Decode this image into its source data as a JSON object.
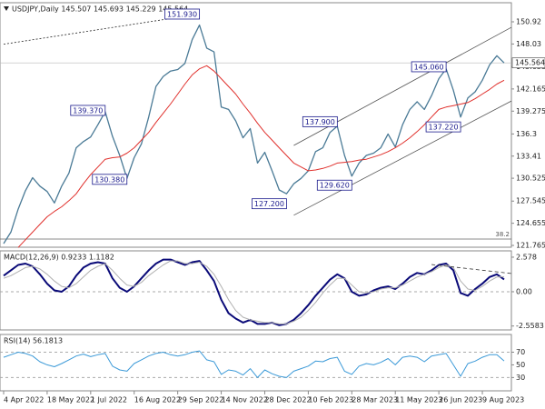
{
  "chart_data": [
    {
      "type": "line",
      "title": "USDJPY,Daily  145.507 145.693 145.229 145.564",
      "categories": [
        "4 Apr 2022",
        null,
        null,
        null,
        null,
        null,
        "18 May 2022",
        null,
        null,
        null,
        null,
        null,
        "1 Jul 2022",
        null,
        null,
        null,
        null,
        null,
        "16 Aug 2022",
        null,
        null,
        null,
        null,
        null,
        "29 Sep 2022",
        null,
        null,
        null,
        null,
        null,
        "14 Nov 2022",
        null,
        null,
        null,
        null,
        null,
        "28 Dec 2022",
        null,
        null,
        null,
        null,
        null,
        "10 Feb 2023",
        null,
        null,
        null,
        null,
        null,
        "28 Mar 2023",
        null,
        null,
        null,
        null,
        null,
        "11 May 2023",
        null,
        null,
        null,
        null,
        null,
        "26 Jun 2023",
        null,
        null,
        null,
        null,
        null,
        "9 Aug 2023",
        null,
        null,
        null
      ],
      "series": [
        {
          "name": "USDJPY",
          "color": "#4a7a96",
          "width": 1.3,
          "values": [
            122.0,
            123.5,
            126.5,
            128.9,
            130.6,
            129.5,
            128.8,
            127.3,
            129.5,
            131.2,
            134.5,
            135.3,
            135.9,
            137.5,
            139.2,
            136.0,
            133.5,
            130.5,
            133.2,
            135.0,
            138.5,
            142.5,
            143.8,
            144.5,
            144.7,
            145.5,
            148.6,
            150.5,
            147.5,
            147.0,
            139.8,
            139.5,
            138.0,
            135.8,
            137.0,
            132.5,
            133.9,
            131.5,
            129.0,
            128.5,
            129.8,
            130.5,
            131.5,
            134.0,
            134.5,
            136.5,
            137.3,
            133.5,
            130.8,
            132.5,
            133.5,
            133.8,
            134.5,
            136.3,
            134.6,
            137.5,
            139.5,
            140.5,
            139.5,
            141.3,
            143.5,
            144.8,
            142.0,
            138.5,
            141.0,
            141.8,
            143.3,
            145.3,
            146.5,
            145.564
          ]
        },
        {
          "name": "MA",
          "color": "#e0302c",
          "width": 1,
          "values": [
            null,
            null,
            121.5,
            122.5,
            123.5,
            124.5,
            125.5,
            126.2,
            126.8,
            127.6,
            128.5,
            129.8,
            131.0,
            132.0,
            133.0,
            133.2,
            133.3,
            133.8,
            134.5,
            135.5,
            136.5,
            137.8,
            139.0,
            140.2,
            141.5,
            142.8,
            144.0,
            144.8,
            145.2,
            144.5,
            143.5,
            142.5,
            141.5,
            140.2,
            139.0,
            137.7,
            136.5,
            135.5,
            134.5,
            133.5,
            132.5,
            132.0,
            131.5,
            131.6,
            131.8,
            132.1,
            132.5,
            132.6,
            132.7,
            132.9,
            133.0,
            133.3,
            133.6,
            134.0,
            134.5,
            135.1,
            135.8,
            136.6,
            137.5,
            138.5,
            139.5,
            139.8,
            140.0,
            140.2,
            140.4,
            140.9,
            141.5,
            142.1,
            142.8,
            143.3
          ]
        }
      ],
      "ylim": [
        121.53,
        153.41
      ],
      "yticks": [
        121.765,
        124.655,
        127.545,
        130.525,
        133.41,
        136.3,
        139.275,
        142.165,
        145.055,
        148.03,
        150.92
      ],
      "last_price": {
        "value": 145.564,
        "label": "145.564"
      },
      "fib_level": {
        "value": 122.6,
        "label": "38.2"
      },
      "annotations": [
        {
          "index": 27,
          "value": 151.93,
          "label": "151.930"
        },
        {
          "index": 14,
          "value": 139.37,
          "label": "139.370"
        },
        {
          "index": 17,
          "value": 130.38,
          "label": "130.380"
        },
        {
          "index": 39,
          "value": 127.2,
          "label": "127.200"
        },
        {
          "index": 46,
          "value": 137.9,
          "label": "137.900"
        },
        {
          "index": 48,
          "value": 129.62,
          "label": "129.620"
        },
        {
          "index": 61,
          "value": 145.06,
          "label": "145.060"
        },
        {
          "index": 63,
          "value": 137.22,
          "label": "137.220"
        }
      ],
      "trendlines": [
        {
          "x": [
            0,
            27
          ],
          "y": [
            148.0,
            151.93
          ],
          "style": "dotted",
          "color": "#222222"
        },
        {
          "x": [
            40,
            70
          ],
          "y": [
            134.8,
            150.2
          ],
          "style": "solid",
          "color": "#555555"
        },
        {
          "x": [
            40,
            70
          ],
          "y": [
            125.7,
            140.6
          ],
          "style": "solid",
          "color": "#555555"
        }
      ]
    },
    {
      "type": "line",
      "title": "MACD(12,26,9) 0.9233 1.1182",
      "series": [
        {
          "name": "MACD",
          "color": "#0a0a78",
          "width": 2,
          "values": [
            1.2,
            1.6,
            2.0,
            2.1,
            1.9,
            1.3,
            0.6,
            0.1,
            0.0,
            0.4,
            1.2,
            1.8,
            2.1,
            2.2,
            2.1,
            1.0,
            0.3,
            0.0,
            0.4,
            1.0,
            1.6,
            2.1,
            2.4,
            2.4,
            2.2,
            2.0,
            2.2,
            2.3,
            1.6,
            0.8,
            -0.6,
            -1.6,
            -2.0,
            -2.3,
            -2.1,
            -2.4,
            -2.4,
            -2.3,
            -2.5,
            -2.4,
            -2.1,
            -1.6,
            -1.0,
            -0.3,
            0.3,
            0.9,
            1.3,
            1.0,
            0.0,
            -0.3,
            -0.2,
            0.1,
            0.3,
            0.4,
            0.2,
            0.6,
            1.1,
            1.4,
            1.3,
            1.6,
            2.0,
            2.1,
            1.6,
            -0.1,
            -0.3,
            0.2,
            0.6,
            1.1,
            1.3,
            0.9233
          ]
        },
        {
          "name": "Signal",
          "color": "#b0b0b0",
          "width": 1,
          "values": [
            1.0,
            1.2,
            1.5,
            1.8,
            1.9,
            1.7,
            1.3,
            0.8,
            0.4,
            0.3,
            0.6,
            1.1,
            1.6,
            1.9,
            2.1,
            1.6,
            1.0,
            0.5,
            0.4,
            0.7,
            1.2,
            1.6,
            2.0,
            2.3,
            2.3,
            2.1,
            2.1,
            2.2,
            1.9,
            1.3,
            0.4,
            -0.6,
            -1.4,
            -1.9,
            -2.1,
            -2.2,
            -2.3,
            -2.3,
            -2.4,
            -2.4,
            -2.2,
            -1.9,
            -1.4,
            -0.8,
            -0.1,
            0.5,
            1.0,
            1.0,
            0.5,
            0.0,
            -0.1,
            0.0,
            0.2,
            0.3,
            0.3,
            0.5,
            0.8,
            1.1,
            1.3,
            1.5,
            1.8,
            2.0,
            1.8,
            0.8,
            0.2,
            0.1,
            0.4,
            0.8,
            1.1,
            1.1182
          ]
        }
      ],
      "ylim": [
        -2.85,
        3.05
      ],
      "yticks": [
        {
          "value": 2.578,
          "label": "2.578"
        },
        {
          "value": 0,
          "label": "0.00"
        },
        {
          "value": -2.5583,
          "label": "-2.5583"
        }
      ],
      "level_lines": [
        0
      ],
      "trendlines": [
        {
          "x": [
            59,
            70
          ],
          "y": [
            2.03,
            1.36
          ],
          "style": "dashed",
          "color": "#333333"
        }
      ]
    },
    {
      "type": "line",
      "title": "RSI(14) 56.1813",
      "series": [
        {
          "name": "RSI",
          "color": "#3c9ad8",
          "width": 1,
          "values": [
            62,
            66,
            70,
            68,
            64,
            55,
            50,
            47,
            52,
            58,
            64,
            67,
            63,
            66,
            68,
            48,
            42,
            40,
            52,
            58,
            64,
            68,
            70,
            66,
            64,
            66,
            70,
            72,
            58,
            55,
            35,
            42,
            40,
            34,
            44,
            30,
            42,
            36,
            32,
            30,
            40,
            44,
            48,
            56,
            55,
            60,
            62,
            40,
            35,
            48,
            52,
            50,
            54,
            60,
            50,
            62,
            64,
            62,
            55,
            64,
            66,
            68,
            50,
            32,
            52,
            56,
            62,
            66,
            66,
            56.1813
          ]
        }
      ],
      "ylim": [
        9,
        98
      ],
      "yticks": [
        70,
        50,
        30
      ],
      "level_lines": [
        70,
        30
      ]
    }
  ]
}
